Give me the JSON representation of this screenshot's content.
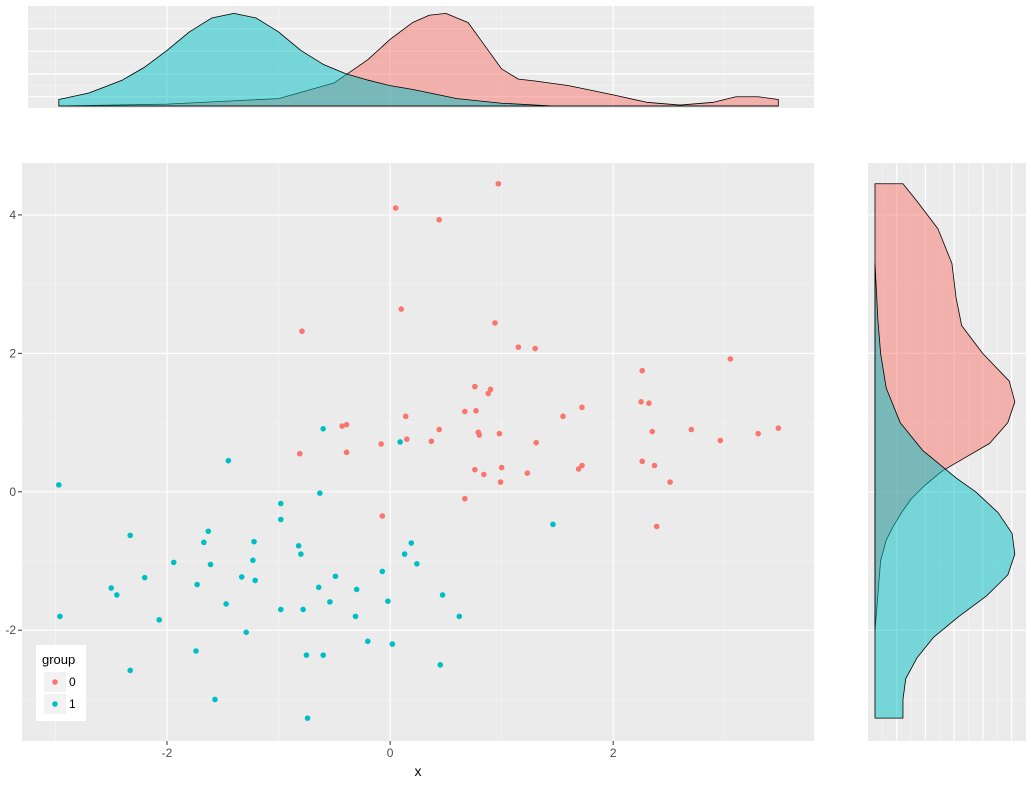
{
  "chart_data": [
    {
      "type": "scatter",
      "xlabel": "x",
      "ylabel": "",
      "xlim": [
        -3.3,
        3.8
      ],
      "ylim": [
        -3.6,
        4.75
      ],
      "x_ticks": [
        -2,
        0,
        2
      ],
      "x_tick_labels": [
        "-2",
        "0",
        "2"
      ],
      "y_ticks": [
        -2,
        0,
        2,
        4
      ],
      "y_tick_labels": [
        "-2",
        "0",
        "2",
        "4"
      ],
      "grid": true,
      "legend": {
        "title": "group",
        "position": "bottom-left",
        "entries": [
          "0",
          "1"
        ]
      },
      "series": [
        {
          "name": "0",
          "color": "#F8766D",
          "points": [
            [
              0.05,
              4.1
            ],
            [
              0.44,
              3.93
            ],
            [
              0.97,
              4.45
            ],
            [
              0.1,
              2.64
            ],
            [
              -0.79,
              2.32
            ],
            [
              0.94,
              2.44
            ],
            [
              1.15,
              2.09
            ],
            [
              1.3,
              2.07
            ],
            [
              3.05,
              1.92
            ],
            [
              2.26,
              1.75
            ],
            [
              0.76,
              1.52
            ],
            [
              0.88,
              1.42
            ],
            [
              0.9,
              1.48
            ],
            [
              0.14,
              1.09
            ],
            [
              1.55,
              1.09
            ],
            [
              1.72,
              1.22
            ],
            [
              2.25,
              1.3
            ],
            [
              2.32,
              1.28
            ],
            [
              0.67,
              1.16
            ],
            [
              0.77,
              1.17
            ],
            [
              -0.43,
              0.95
            ],
            [
              -0.39,
              0.97
            ],
            [
              -0.81,
              0.55
            ],
            [
              -0.39,
              0.57
            ],
            [
              0.44,
              0.9
            ],
            [
              0.79,
              0.86
            ],
            [
              0.8,
              0.82
            ],
            [
              0.98,
              0.84
            ],
            [
              0.15,
              0.76
            ],
            [
              0.37,
              0.73
            ],
            [
              -0.08,
              0.69
            ],
            [
              1.31,
              0.71
            ],
            [
              2.35,
              0.87
            ],
            [
              2.7,
              0.9
            ],
            [
              2.96,
              0.74
            ],
            [
              3.3,
              0.84
            ],
            [
              3.48,
              0.92
            ],
            [
              0.76,
              0.32
            ],
            [
              0.84,
              0.25
            ],
            [
              1.0,
              0.35
            ],
            [
              1.23,
              0.27
            ],
            [
              1.69,
              0.33
            ],
            [
              1.72,
              0.38
            ],
            [
              2.26,
              0.44
            ],
            [
              2.37,
              0.38
            ],
            [
              0.99,
              0.14
            ],
            [
              2.51,
              0.14
            ],
            [
              0.67,
              -0.1
            ],
            [
              -0.07,
              -0.35
            ],
            [
              2.39,
              -0.5
            ]
          ]
        },
        {
          "name": "1",
          "color": "#00BFC4",
          "points": [
            [
              -2.97,
              0.1
            ],
            [
              -2.96,
              -1.8
            ],
            [
              -1.45,
              0.45
            ],
            [
              -0.6,
              0.91
            ],
            [
              0.09,
              0.72
            ],
            [
              -0.63,
              -0.02
            ],
            [
              -0.98,
              -0.17
            ],
            [
              -0.98,
              -0.4
            ],
            [
              1.46,
              -0.47
            ],
            [
              -2.33,
              -0.63
            ],
            [
              -1.63,
              -0.57
            ],
            [
              -1.67,
              -0.73
            ],
            [
              -1.22,
              -0.72
            ],
            [
              -0.82,
              -0.78
            ],
            [
              -0.8,
              -0.9
            ],
            [
              0.19,
              -0.74
            ],
            [
              0.13,
              -0.9
            ],
            [
              -1.94,
              -1.02
            ],
            [
              -1.61,
              -1.05
            ],
            [
              -1.23,
              -0.99
            ],
            [
              0.24,
              -1.04
            ],
            [
              -0.07,
              -1.15
            ],
            [
              -0.49,
              -1.22
            ],
            [
              -2.2,
              -1.24
            ],
            [
              -1.33,
              -1.23
            ],
            [
              -1.21,
              -1.28
            ],
            [
              -2.5,
              -1.39
            ],
            [
              -2.45,
              -1.49
            ],
            [
              -1.73,
              -1.34
            ],
            [
              -0.64,
              -1.38
            ],
            [
              -0.3,
              -1.41
            ],
            [
              0.47,
              -1.49
            ],
            [
              -1.47,
              -1.62
            ],
            [
              -0.98,
              -1.7
            ],
            [
              -0.78,
              -1.7
            ],
            [
              -0.54,
              -1.59
            ],
            [
              -0.02,
              -1.58
            ],
            [
              -2.07,
              -1.85
            ],
            [
              -0.31,
              -1.8
            ],
            [
              0.62,
              -1.8
            ],
            [
              -1.29,
              -2.03
            ],
            [
              -0.2,
              -2.16
            ],
            [
              0.02,
              -2.2
            ],
            [
              -1.74,
              -2.3
            ],
            [
              -0.75,
              -2.36
            ],
            [
              -0.6,
              -2.36
            ],
            [
              -2.33,
              -2.58
            ],
            [
              0.45,
              -2.5
            ],
            [
              -1.57,
              -3.0
            ],
            [
              -0.74,
              -3.27
            ]
          ]
        }
      ]
    },
    {
      "type": "area",
      "orientation": "top-marginal-density",
      "xlim": [
        -3.3,
        3.8
      ],
      "grid": true,
      "series": [
        {
          "name": "0",
          "color": "#F8766D",
          "x": [
            -2.97,
            -2.0,
            -1.0,
            -0.5,
            -0.2,
            0.0,
            0.2,
            0.35,
            0.5,
            0.7,
            0.85,
            1.0,
            1.15,
            1.3,
            1.6,
            2.0,
            2.3,
            2.6,
            2.9,
            3.1,
            3.3,
            3.48
          ],
          "density": [
            0.0,
            0.02,
            0.08,
            0.25,
            0.5,
            0.72,
            0.9,
            0.98,
            1.0,
            0.9,
            0.65,
            0.4,
            0.29,
            0.27,
            0.22,
            0.12,
            0.04,
            0.01,
            0.04,
            0.1,
            0.1,
            0.07
          ]
        },
        {
          "name": "1",
          "color": "#00BFC4",
          "x": [
            -2.97,
            -2.7,
            -2.4,
            -2.2,
            -2.0,
            -1.8,
            -1.6,
            -1.4,
            -1.2,
            -1.0,
            -0.8,
            -0.6,
            -0.4,
            -0.2,
            0.0,
            0.2,
            0.4,
            0.6,
            1.0,
            1.46,
            2.0,
            3.48
          ],
          "density": [
            0.07,
            0.14,
            0.28,
            0.42,
            0.6,
            0.8,
            0.95,
            1.0,
            0.95,
            0.8,
            0.6,
            0.45,
            0.35,
            0.28,
            0.22,
            0.18,
            0.13,
            0.08,
            0.03,
            0.0,
            0.0,
            0.0
          ]
        }
      ]
    },
    {
      "type": "area",
      "orientation": "right-marginal-density",
      "ylim": [
        -3.6,
        4.75
      ],
      "grid": true,
      "series": [
        {
          "name": "0",
          "color": "#F8766D",
          "y": [
            4.45,
            4.2,
            3.8,
            3.3,
            2.8,
            2.4,
            2.0,
            1.6,
            1.3,
            1.0,
            0.7,
            0.5,
            0.3,
            0.1,
            -0.1,
            -0.3,
            -0.5,
            -0.7,
            -1.0,
            -1.5,
            -2.0
          ],
          "density": [
            0.2,
            0.3,
            0.45,
            0.55,
            0.58,
            0.62,
            0.77,
            0.96,
            1.0,
            0.95,
            0.82,
            0.65,
            0.48,
            0.36,
            0.26,
            0.19,
            0.13,
            0.08,
            0.04,
            0.02,
            0.0
          ]
        },
        {
          "name": "1",
          "color": "#00BFC4",
          "y": [
            3.3,
            2.5,
            2.0,
            1.5,
            1.0,
            0.6,
            0.4,
            0.2,
            0.0,
            -0.3,
            -0.6,
            -0.9,
            -1.2,
            -1.5,
            -1.8,
            -2.1,
            -2.4,
            -2.7,
            -3.0,
            -3.27
          ],
          "density": [
            0.0,
            0.02,
            0.04,
            0.08,
            0.18,
            0.34,
            0.46,
            0.58,
            0.72,
            0.88,
            0.98,
            1.0,
            0.95,
            0.8,
            0.6,
            0.42,
            0.3,
            0.22,
            0.2,
            0.2
          ]
        }
      ]
    }
  ]
}
